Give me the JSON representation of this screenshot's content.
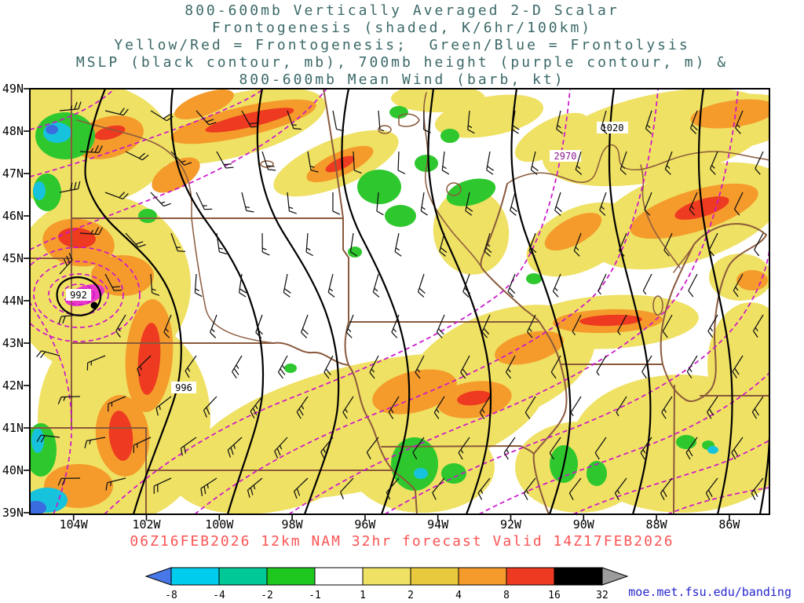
{
  "title": {
    "lines": [
      "800-600mb Vertically Averaged 2-D Scalar",
      "Frontogenesis (shaded, K/6hr/100km)",
      "Yellow/Red = Frontogenesis;  Green/Blue = Frontolysis",
      "MSLP (black contour, mb), 700mb height (purple contour, m) &",
      "800-600mb Mean Wind (barb, kt)"
    ]
  },
  "map": {
    "lat_ticks": [
      "49N",
      "48N",
      "47N",
      "46N",
      "45N",
      "44N",
      "43N",
      "42N",
      "41N",
      "40N",
      "39N"
    ],
    "lon_ticks": [
      "104W",
      "102W",
      "100W",
      "98W",
      "96W",
      "94W",
      "92W",
      "90W",
      "88W",
      "86W"
    ],
    "contour_labels": {
      "low": "992",
      "mslp_996": "996",
      "mslp_1020": "1020",
      "height_2970": "2970"
    }
  },
  "footer": {
    "caption": "06Z16FEB2026 12km NAM 32hr forecast Valid 14Z17FEB2026",
    "credit": "moe.met.fsu.edu/banding"
  },
  "colorbar": {
    "tick_labels": [
      "-8",
      "-4",
      "-2",
      "-1",
      "1",
      "2",
      "4",
      "8",
      "16",
      "32"
    ],
    "colors": [
      "#4878e8",
      "#00ccee",
      "#00c896",
      "#1ec81e",
      "#ffffff",
      "#efe163",
      "#e8c83c",
      "#f49b2c",
      "#ee3a20",
      "#000000",
      "#9c9c9c"
    ]
  },
  "palette": {
    "title_text": "#3b6868",
    "caption_text": "#fc5454",
    "credit_text": "#2626cc",
    "state_border": "#8a5a3c",
    "mslp_contour": "#000000",
    "height_contour": "#cc14cc"
  },
  "chart_data": {
    "type": "heatmap",
    "title": "800-600mb Vertically Averaged 2-D Scalar Frontogenesis",
    "shaded_field": "frontogenesis",
    "shading_units": "K/6hr/100km",
    "shading_levels": [
      -8,
      -4,
      -2,
      -1,
      1,
      2,
      4,
      8,
      16,
      32
    ],
    "shading_colors": [
      "#4878e8",
      "#00ccee",
      "#00c896",
      "#1ec81e",
      "#ffffff",
      "#efe163",
      "#e8c83c",
      "#f49b2c",
      "#ee3a20",
      "#000000",
      "#9c9c9c"
    ],
    "positive_meaning": "Yellow/Red = Frontogenesis",
    "negative_meaning": "Green/Blue = Frontolysis",
    "x_axis": {
      "label": "longitude",
      "ticks": [
        "104W",
        "102W",
        "100W",
        "98W",
        "96W",
        "94W",
        "92W",
        "90W",
        "88W",
        "86W"
      ]
    },
    "y_axis": {
      "label": "latitude",
      "ticks": [
        "49N",
        "48N",
        "47N",
        "46N",
        "45N",
        "44N",
        "43N",
        "42N",
        "41N",
        "40N",
        "39N"
      ]
    },
    "overlays": [
      {
        "field": "MSLP",
        "style": "solid black contours",
        "units": "mb",
        "labeled_values": [
          992,
          996,
          1020
        ],
        "low_center_value": 992,
        "low_center_location": "near west edge ~44N"
      },
      {
        "field": "700mb geopotential height",
        "style": "dashed purple contours",
        "units": "m",
        "labeled_values": [
          2970
        ]
      },
      {
        "field": "800-600mb mean wind",
        "style": "wind barbs",
        "units": "kt"
      }
    ],
    "model": "12km NAM",
    "init": "06Z16FEB2026",
    "forecast_hour": 32,
    "valid": "14Z17FEB2026",
    "region": "Upper Midwest / Great Lakes (104W-86W, 39N-49N)",
    "legend_position": "bottom colorbar with arrow end caps",
    "grid": "off"
  }
}
